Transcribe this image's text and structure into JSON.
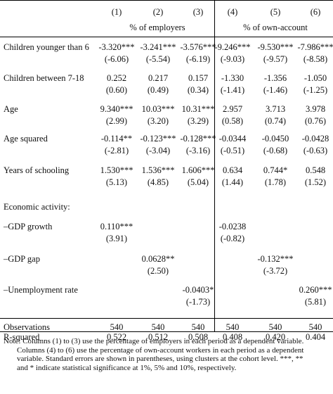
{
  "columns": [
    "(1)",
    "(2)",
    "(3)",
    "(4)",
    "(5)",
    "(6)"
  ],
  "group_headers": [
    "% of employers",
    "% of own-account"
  ],
  "rows": [
    {
      "label": "Children younger than 6",
      "coef": [
        "-3.320***",
        "-3.241***",
        "-3.576***",
        "-9.246***",
        "-9.530***",
        "-7.986***"
      ],
      "se": [
        "(-6.06)",
        "(-5.54)",
        "(-6.19)",
        "(-9.03)",
        "(-9.57)",
        "(-8.58)"
      ]
    },
    {
      "label": "Children between 7-18",
      "coef": [
        "0.252",
        "0.217",
        "0.157",
        "-1.330",
        "-1.356",
        "-1.050"
      ],
      "se": [
        "(0.60)",
        "(0.49)",
        "(0.34)",
        "(-1.41)",
        "(-1.46)",
        "(-1.25)"
      ]
    },
    {
      "label": "Age",
      "coef": [
        "9.340***",
        "10.03***",
        "10.31***",
        "2.957",
        "3.713",
        "3.978"
      ],
      "se": [
        "(2.99)",
        "(3.20)",
        "(3.29)",
        "(0.58)",
        "(0.74)",
        "(0.76)"
      ]
    },
    {
      "label": "Age squared",
      "coef": [
        "-0.114**",
        "-0.123***",
        "-0.128***",
        "-0.0344",
        "-0.0450",
        "-0.0428"
      ],
      "se": [
        "(-2.81)",
        "(-3.04)",
        "(-3.16)",
        "(-0.51)",
        "(-0.68)",
        "(-0.63)"
      ]
    },
    {
      "label": "Years of schooling",
      "coef": [
        "1.530***",
        "1.536***",
        "1.606***",
        "0.634",
        "0.744*",
        "0.548"
      ],
      "se": [
        "(5.13)",
        "(4.85)",
        "(5.04)",
        "(1.44)",
        "(1.78)",
        "(1.52)"
      ]
    }
  ],
  "section_label": "Economic activity:",
  "activity_rows": [
    {
      "label": "–GDP growth",
      "cols": [
        {
          "col": 1,
          "coef": "0.110***",
          "se": "(3.91)"
        },
        {
          "col": 4,
          "coef": "-0.0238",
          "se": "(-0.82)"
        }
      ]
    },
    {
      "label": "–GDP gap",
      "cols": [
        {
          "col": 2,
          "coef": "0.0628**",
          "se": "(2.50)"
        },
        {
          "col": 5,
          "coef": "-0.132***",
          "se": "(-3.72)"
        }
      ]
    },
    {
      "label": "–Unemployment rate",
      "cols": [
        {
          "col": 3,
          "coef": "-0.0403*",
          "se": "(-1.73)"
        },
        {
          "col": 6,
          "coef": "0.260***",
          "se": "(5.81)"
        }
      ]
    }
  ],
  "footer_rows": [
    {
      "label": "Observations",
      "values": [
        "540",
        "540",
        "540",
        "540",
        "540",
        "540"
      ]
    },
    {
      "label": "R-squared",
      "values": [
        "0.522",
        "0.512",
        "0.508",
        "0.408",
        "0.420",
        "0.404"
      ]
    }
  ],
  "note": {
    "first": "Note: Columns (1) to (3) use the percentage of employers in each period as a dependent variable.",
    "rest": [
      "Columns (4) to (6) use the percentage of own-account workers in each period as a dependent",
      "variable. Standard errors are shown in parentheses, using clusters at the cohort level. ***, **",
      "and * indicate statistical significance at 1%, 5% and 10%, respectively."
    ]
  }
}
